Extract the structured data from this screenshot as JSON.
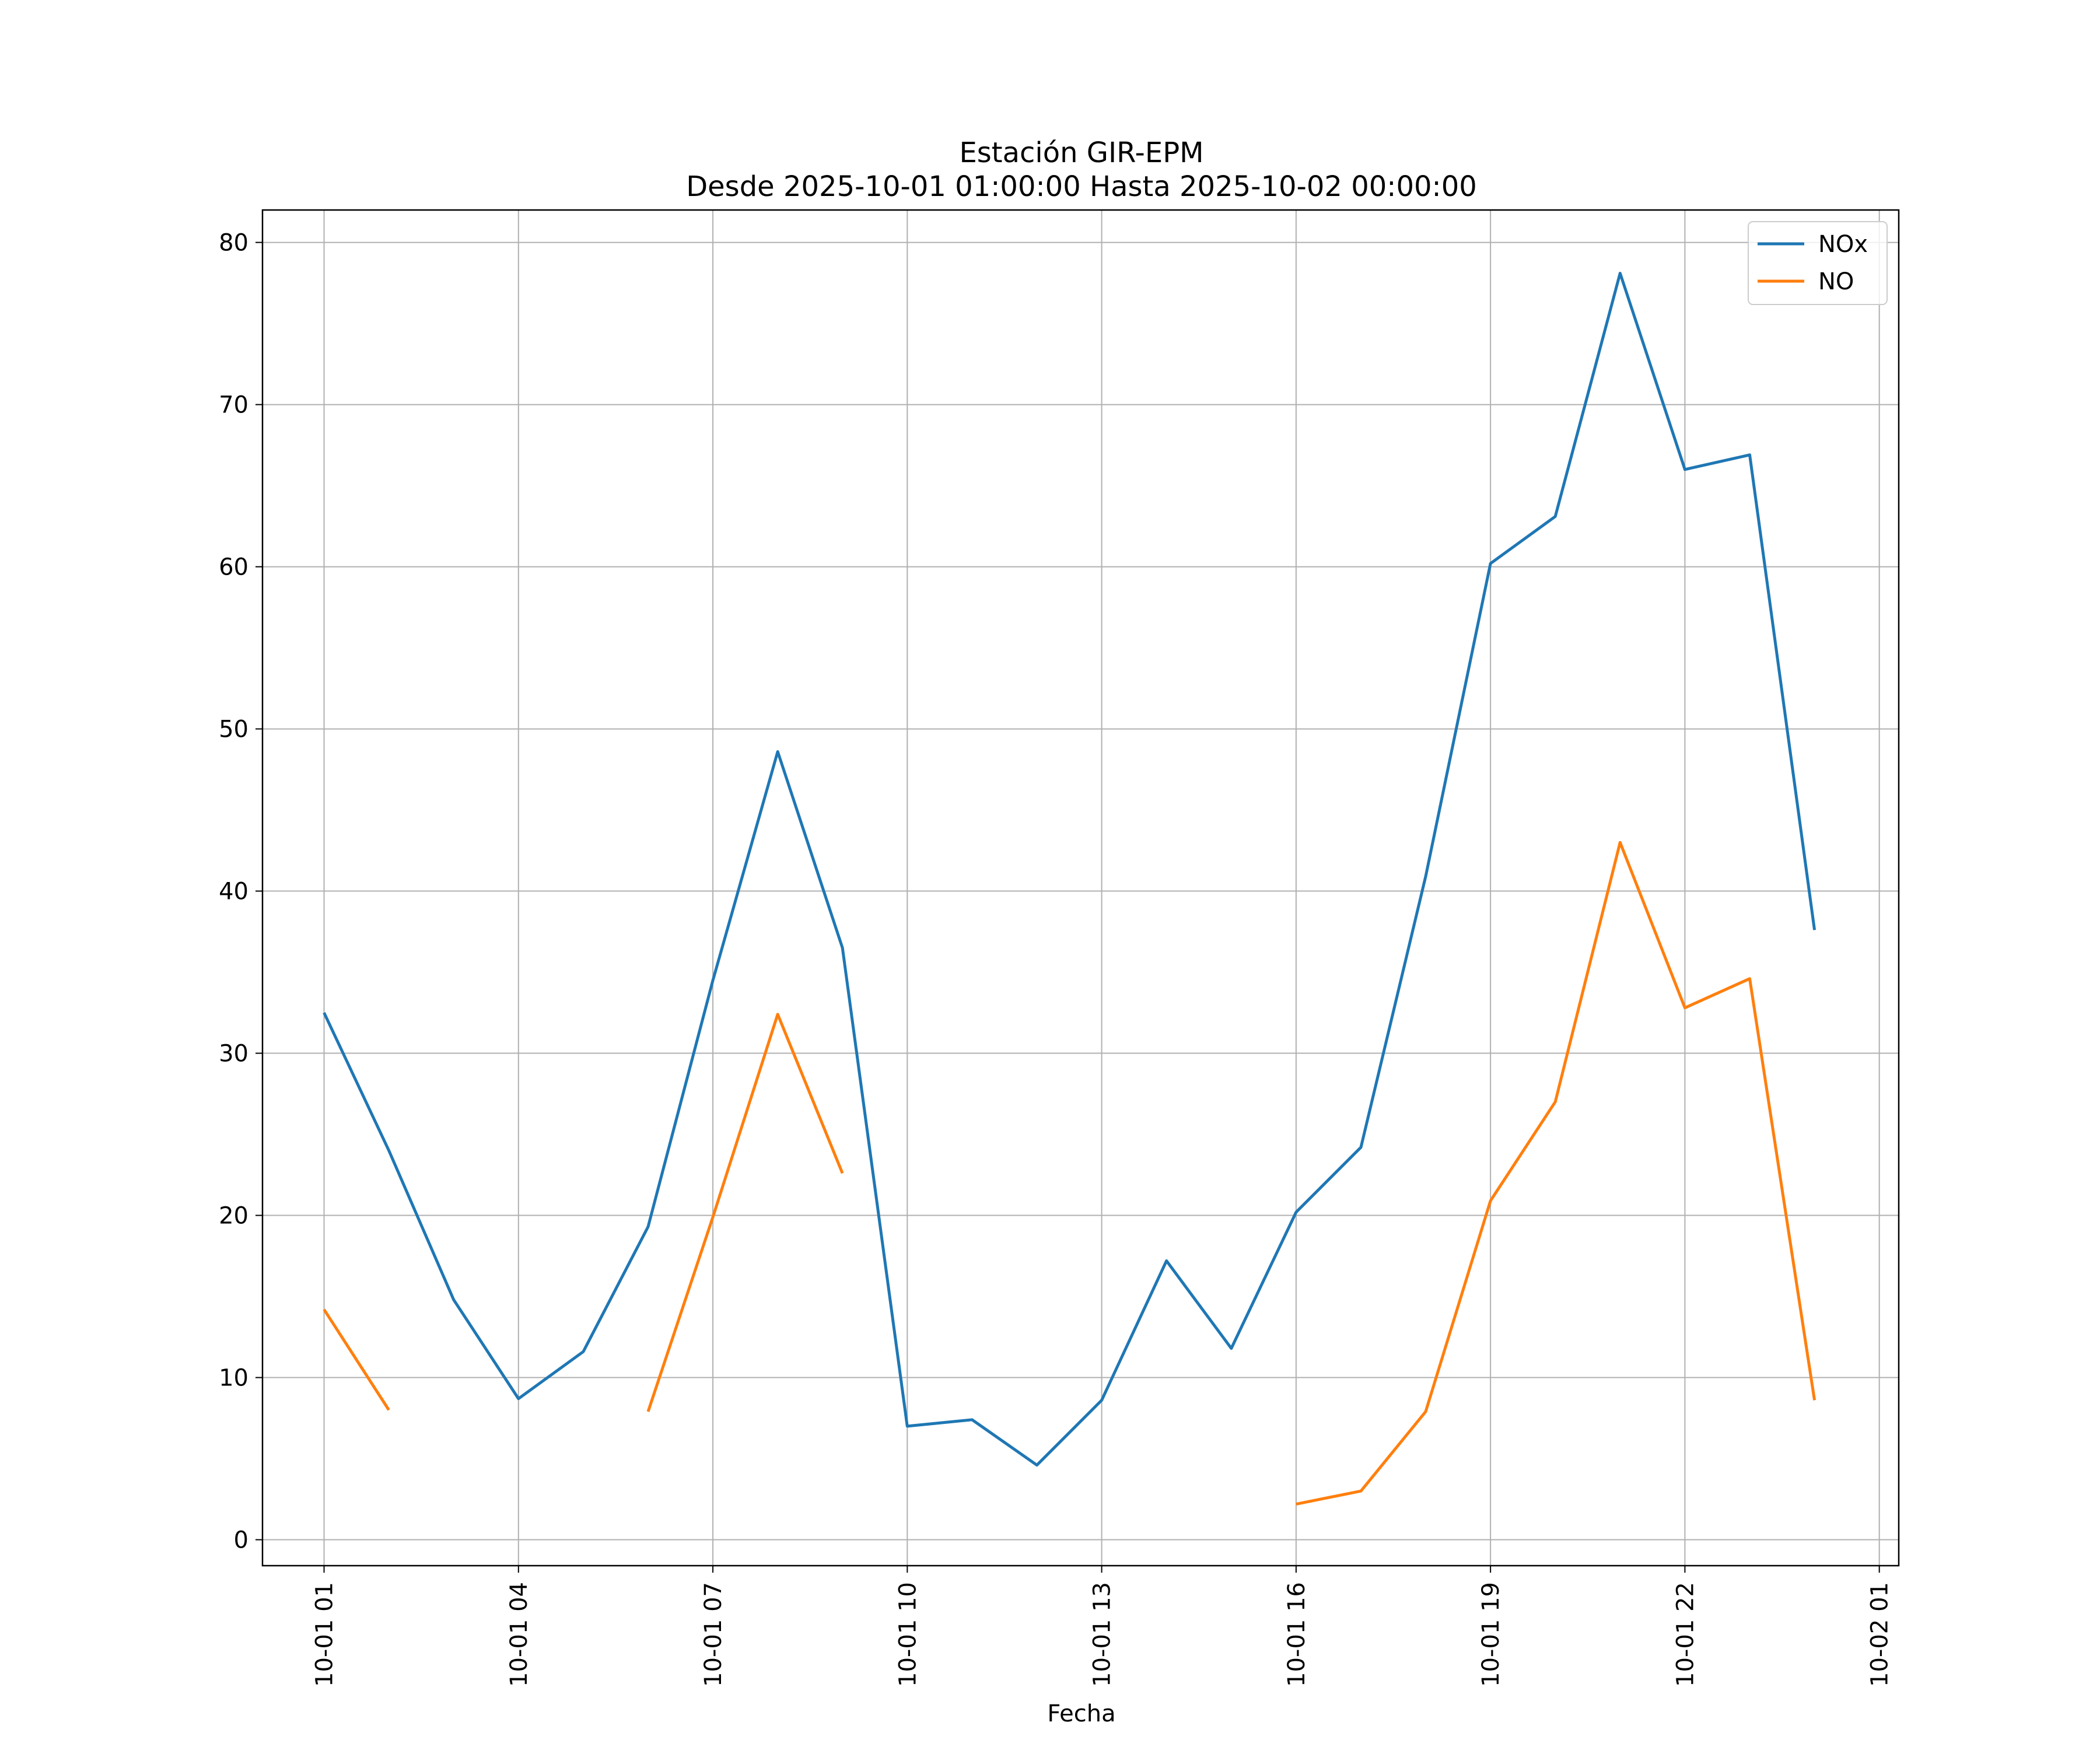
{
  "chart_data": {
    "type": "line",
    "title": "Estación GIR-EPM",
    "subtitle": "Desde 2025-10-01 01:00:00 Hasta 2025-10-02 00:00:00",
    "xlabel": "Fecha",
    "ylabel": "",
    "grid": true,
    "legend_position": "top-right",
    "x": [
      "2025-10-01 01:00",
      "2025-10-01 02:00",
      "2025-10-01 03:00",
      "2025-10-01 04:00",
      "2025-10-01 05:00",
      "2025-10-01 06:00",
      "2025-10-01 07:00",
      "2025-10-01 08:00",
      "2025-10-01 09:00",
      "2025-10-01 10:00",
      "2025-10-01 11:00",
      "2025-10-01 12:00",
      "2025-10-01 13:00",
      "2025-10-01 14:00",
      "2025-10-01 15:00",
      "2025-10-01 16:00",
      "2025-10-01 17:00",
      "2025-10-01 18:00",
      "2025-10-01 19:00",
      "2025-10-01 20:00",
      "2025-10-01 21:00",
      "2025-10-01 22:00",
      "2025-10-01 23:00",
      "2025-10-02 00:00"
    ],
    "series": [
      {
        "name": "NOx",
        "color": "#1f77b4",
        "values": [
          32.5,
          24.0,
          14.8,
          8.7,
          11.6,
          19.3,
          34.5,
          48.6,
          36.5,
          7.0,
          7.4,
          4.6,
          8.6,
          17.2,
          11.8,
          20.2,
          24.2,
          40.9,
          60.2,
          63.1,
          78.1,
          66.0,
          66.9,
          37.6
        ]
      },
      {
        "name": "NO",
        "color": "#ff7f0e",
        "values": [
          14.2,
          8.0,
          null,
          null,
          null,
          7.9,
          19.9,
          32.4,
          22.6,
          null,
          null,
          null,
          null,
          null,
          null,
          2.2,
          3.0,
          7.9,
          20.9,
          27.0,
          43.0,
          32.8,
          34.6,
          8.6
        ]
      }
    ],
    "xticks": [
      "10-01 01",
      "10-01 04",
      "10-01 07",
      "10-01 10",
      "10-01 13",
      "10-01 16",
      "10-01 19",
      "10-01 22",
      "10-02 01"
    ],
    "xtick_hours": [
      1,
      4,
      7,
      10,
      13,
      16,
      19,
      22,
      25
    ],
    "ylim": [
      -1.6,
      82
    ],
    "yticks": [
      0,
      10,
      20,
      30,
      40,
      50,
      60,
      70,
      80
    ]
  }
}
